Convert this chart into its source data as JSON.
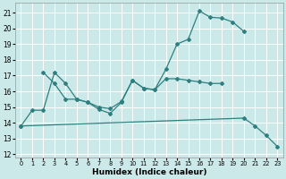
{
  "bg_color": "#cce9e9",
  "grid_color": "#ffffff",
  "line_color": "#2e7f7f",
  "xlabel": "Humidex (Indice chaleur)",
  "xlim": [
    -0.5,
    23.5
  ],
  "ylim": [
    11.8,
    21.6
  ],
  "yticks": [
    12,
    13,
    14,
    15,
    16,
    17,
    18,
    19,
    20,
    21
  ],
  "xticks": [
    0,
    1,
    2,
    3,
    4,
    5,
    6,
    7,
    8,
    9,
    10,
    11,
    12,
    13,
    14,
    15,
    16,
    17,
    18,
    19,
    20,
    21,
    22,
    23
  ],
  "line1_x": [
    0,
    1,
    2,
    3,
    4,
    5,
    6,
    7,
    8,
    9,
    10,
    11,
    12,
    13,
    14,
    15,
    16,
    17,
    18,
    19,
    20
  ],
  "line1_y": [
    13.8,
    14.8,
    14.8,
    17.2,
    16.5,
    15.5,
    15.3,
    14.85,
    14.6,
    15.3,
    16.7,
    16.2,
    16.1,
    17.4,
    19.0,
    19.3,
    21.1,
    20.7,
    20.65,
    20.4,
    19.8
  ],
  "line2_x": [
    2,
    3,
    4,
    5,
    6,
    7,
    8,
    9,
    10,
    11,
    12,
    13,
    14,
    15,
    16,
    17,
    18
  ],
  "line2_y": [
    17.2,
    16.5,
    15.5,
    15.5,
    15.3,
    15.0,
    14.9,
    15.35,
    16.7,
    16.2,
    16.1,
    16.8,
    16.8,
    16.7,
    16.6,
    16.5,
    16.5
  ],
  "line3_x": [
    0,
    20,
    21,
    22,
    23
  ],
  "line3_y": [
    13.8,
    14.3,
    13.8,
    13.2,
    12.5
  ],
  "figsize": [
    3.2,
    2.0
  ],
  "dpi": 100
}
